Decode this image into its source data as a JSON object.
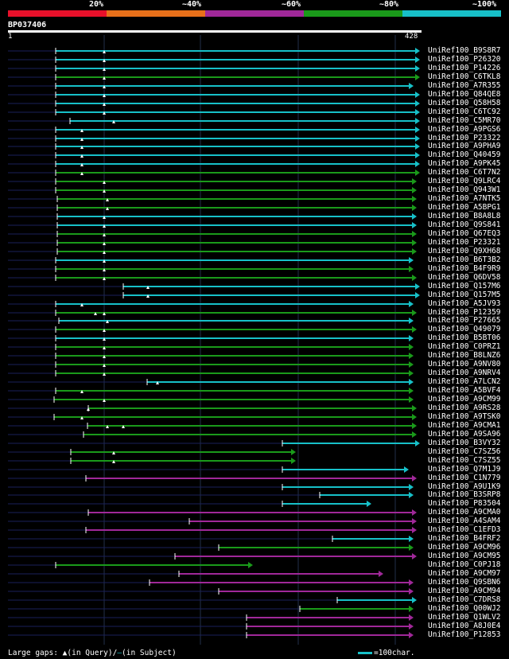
{
  "legend": {
    "labels": [
      "20%",
      "~40%",
      "~60%",
      "~80%",
      "~100%"
    ],
    "colors": [
      "#e8102a",
      "#e8701a",
      "#a02899",
      "#1a9a1a",
      "#17c0c8"
    ]
  },
  "query": {
    "id": "BP037406",
    "start": "1",
    "end": "428"
  },
  "colors": {
    "cyan": "#17c0c8",
    "green": "#1a9a1a",
    "purple": "#a02899",
    "dark": "#1a1f5a"
  },
  "hits": [
    {
      "id": "UniRef100_B9S8R7",
      "c": "cyan",
      "s": 70,
      "e": 528,
      "m": [
        131
      ]
    },
    {
      "id": "UniRef100_P26320",
      "c": "cyan",
      "s": 70,
      "e": 528,
      "m": [
        131
      ]
    },
    {
      "id": "UniRef100_P14226",
      "c": "cyan",
      "s": 70,
      "e": 528,
      "m": [
        131
      ]
    },
    {
      "id": "UniRef100_C6TKL8",
      "c": "green",
      "s": 70,
      "e": 528,
      "m": [
        131
      ]
    },
    {
      "id": "UniRef100_A7R355",
      "c": "cyan",
      "s": 70,
      "e": 520,
      "m": [
        131
      ]
    },
    {
      "id": "UniRef100_Q84QE8",
      "c": "cyan",
      "s": 70,
      "e": 528,
      "m": [
        131
      ]
    },
    {
      "id": "UniRef100_Q58H58",
      "c": "cyan",
      "s": 70,
      "e": 528,
      "m": [
        131
      ]
    },
    {
      "id": "UniRef100_C6TC92",
      "c": "cyan",
      "s": 70,
      "e": 528,
      "m": [
        131
      ]
    },
    {
      "id": "UniRef100_C5MR70",
      "c": "cyan",
      "s": 88,
      "e": 528,
      "m": [
        143
      ]
    },
    {
      "id": "UniRef100_A9PGS6",
      "c": "cyan",
      "s": 70,
      "e": 528,
      "m": [
        103
      ]
    },
    {
      "id": "UniRef100_P23322",
      "c": "cyan",
      "s": 70,
      "e": 528,
      "m": [
        103
      ]
    },
    {
      "id": "UniRef100_A9PHA9",
      "c": "cyan",
      "s": 70,
      "e": 528,
      "m": [
        103
      ]
    },
    {
      "id": "UniRef100_Q40459",
      "c": "cyan",
      "s": 70,
      "e": 528,
      "m": [
        103
      ]
    },
    {
      "id": "UniRef100_A9PK45",
      "c": "cyan",
      "s": 70,
      "e": 528,
      "m": [
        103
      ]
    },
    {
      "id": "UniRef100_C6T7N2",
      "c": "green",
      "s": 70,
      "e": 528,
      "m": [
        103
      ]
    },
    {
      "id": "UniRef100_Q9LRC4",
      "c": "green",
      "s": 70,
      "e": 524,
      "m": [
        131
      ]
    },
    {
      "id": "UniRef100_Q943W1",
      "c": "green",
      "s": 70,
      "e": 524,
      "m": [
        131
      ]
    },
    {
      "id": "UniRef100_A7NTK5",
      "c": "green",
      "s": 72,
      "e": 524,
      "m": [
        135
      ]
    },
    {
      "id": "UniRef100_A5BPG1",
      "c": "green",
      "s": 72,
      "e": 524,
      "m": [
        135
      ]
    },
    {
      "id": "UniRef100_B8A8L8",
      "c": "cyan",
      "s": 72,
      "e": 524,
      "m": [
        131
      ]
    },
    {
      "id": "UniRef100_Q9S841",
      "c": "cyan",
      "s": 72,
      "e": 524,
      "m": [
        131
      ]
    },
    {
      "id": "UniRef100_Q67EQ3",
      "c": "green",
      "s": 72,
      "e": 524,
      "m": [
        131
      ]
    },
    {
      "id": "UniRef100_P23321",
      "c": "green",
      "s": 72,
      "e": 524,
      "m": [
        131
      ]
    },
    {
      "id": "UniRef100_Q9XH68",
      "c": "green",
      "s": 72,
      "e": 524,
      "m": [
        131
      ]
    },
    {
      "id": "UniRef100_B6T3B2",
      "c": "cyan",
      "s": 70,
      "e": 520,
      "m": [
        131
      ]
    },
    {
      "id": "UniRef100_B4F9R9",
      "c": "green",
      "s": 70,
      "e": 520,
      "m": [
        131
      ]
    },
    {
      "id": "UniRef100_Q6DV58",
      "c": "green",
      "s": 70,
      "e": 524,
      "m": [
        131
      ]
    },
    {
      "id": "UniRef100_Q157M6",
      "c": "cyan",
      "s": 155,
      "e": 528,
      "m": [
        186
      ]
    },
    {
      "id": "UniRef100_Q157M5",
      "c": "cyan",
      "s": 155,
      "e": 528,
      "m": [
        186
      ]
    },
    {
      "id": "UniRef100_A5JV93",
      "c": "cyan",
      "s": 70,
      "e": 520,
      "m": [
        103
      ]
    },
    {
      "id": "UniRef100_P12359",
      "c": "green",
      "s": 70,
      "e": 524,
      "m": [
        120,
        131
      ]
    },
    {
      "id": "UniRef100_P27665",
      "c": "cyan",
      "s": 74,
      "e": 520,
      "m": [
        135
      ]
    },
    {
      "id": "UniRef100_Q49079",
      "c": "green",
      "s": 70,
      "e": 524,
      "m": [
        131
      ]
    },
    {
      "id": "UniRef100_B5BT06",
      "c": "cyan",
      "s": 70,
      "e": 520,
      "m": [
        131
      ]
    },
    {
      "id": "UniRef100_C0PRZ1",
      "c": "green",
      "s": 70,
      "e": 520,
      "m": [
        131
      ]
    },
    {
      "id": "UniRef100_B8LNZ6",
      "c": "green",
      "s": 70,
      "e": 520,
      "m": [
        131
      ]
    },
    {
      "id": "UniRef100_A9NV80",
      "c": "green",
      "s": 70,
      "e": 520,
      "m": [
        131
      ]
    },
    {
      "id": "UniRef100_A9NRV4",
      "c": "green",
      "s": 70,
      "e": 520,
      "m": [
        131
      ]
    },
    {
      "id": "UniRef100_A7LCN2",
      "c": "cyan",
      "s": 185,
      "e": 520,
      "m": [
        198
      ]
    },
    {
      "id": "UniRef100_A5BVF4",
      "c": "green",
      "s": 70,
      "e": 520,
      "m": [
        103
      ]
    },
    {
      "id": "UniRef100_A9CM99",
      "c": "green",
      "s": 68,
      "e": 520,
      "m": [
        131
      ]
    },
    {
      "id": "UniRef100_A9RS28",
      "c": "green",
      "s": 111,
      "e": 524,
      "m": [
        111
      ]
    },
    {
      "id": "UniRef100_A9TSK0",
      "c": "green",
      "s": 68,
      "e": 524,
      "m": [
        103
      ]
    },
    {
      "id": "UniRef100_A9CMA1",
      "c": "green",
      "s": 110,
      "e": 524,
      "m": [
        135,
        155
      ]
    },
    {
      "id": "UniRef100_A9SA96",
      "c": "green",
      "s": 105,
      "e": 524,
      "m": []
    },
    {
      "id": "UniRef100_B3VY32",
      "c": "cyan",
      "s": 355,
      "e": 528,
      "m": []
    },
    {
      "id": "UniRef100_C7SZ56",
      "c": "green",
      "s": 89,
      "e": 372,
      "m": [
        143
      ]
    },
    {
      "id": "UniRef100_C7SZ55",
      "c": "green",
      "s": 89,
      "e": 372,
      "m": [
        143
      ]
    },
    {
      "id": "UniRef100_Q7M1J9",
      "c": "cyan",
      "s": 355,
      "e": 514,
      "m": []
    },
    {
      "id": "UniRef100_C1N779",
      "c": "purple",
      "s": 108,
      "e": 524,
      "m": []
    },
    {
      "id": "UniRef100_A9U1K9",
      "c": "cyan",
      "s": 355,
      "e": 520,
      "m": []
    },
    {
      "id": "UniRef100_B3SRP8",
      "c": "cyan",
      "s": 402,
      "e": 520,
      "m": []
    },
    {
      "id": "UniRef100_P83504",
      "c": "cyan",
      "s": 355,
      "e": 467,
      "m": []
    },
    {
      "id": "UniRef100_A9CMA0",
      "c": "purple",
      "s": 111,
      "e": 524,
      "m": []
    },
    {
      "id": "UniRef100_A4SAM4",
      "c": "purple",
      "s": 238,
      "e": 524,
      "m": []
    },
    {
      "id": "UniRef100_C1EFD3",
      "c": "purple",
      "s": 108,
      "e": 524,
      "m": []
    },
    {
      "id": "UniRef100_B4FRF2",
      "c": "cyan",
      "s": 418,
      "e": 520,
      "m": []
    },
    {
      "id": "UniRef100_A9CM96",
      "c": "green",
      "s": 275,
      "e": 520,
      "m": []
    },
    {
      "id": "UniRef100_A9CM95",
      "c": "purple",
      "s": 220,
      "e": 524,
      "m": []
    },
    {
      "id": "UniRef100_C0PJ18",
      "c": "green",
      "s": 70,
      "e": 318,
      "m": []
    },
    {
      "id": "UniRef100_A9CM97",
      "c": "purple",
      "s": 225,
      "e": 482,
      "m": []
    },
    {
      "id": "UniRef100_Q9SBN6",
      "c": "purple",
      "s": 188,
      "e": 520,
      "m": []
    },
    {
      "id": "UniRef100_A9CM94",
      "c": "purple",
      "s": 275,
      "e": 520,
      "m": []
    },
    {
      "id": "UniRef100_C7DRS8",
      "c": "cyan",
      "s": 424,
      "e": 524,
      "m": []
    },
    {
      "id": "UniRef100_Q00WJ2",
      "c": "green",
      "s": 377,
      "e": 520,
      "m": []
    },
    {
      "id": "UniRef100_Q1WLV2",
      "c": "purple",
      "s": 310,
      "e": 520,
      "m": []
    },
    {
      "id": "UniRef100_A8J0E4",
      "c": "purple",
      "s": 310,
      "e": 520,
      "m": []
    },
    {
      "id": "UniRef100_P12853",
      "c": "purple",
      "s": 310,
      "e": 520,
      "m": []
    }
  ],
  "footer": {
    "gaps_label": "Large gaps:",
    "in_query": "(in Query)/",
    "in_subject": "(in Subject)",
    "scale_label": "=100char."
  }
}
